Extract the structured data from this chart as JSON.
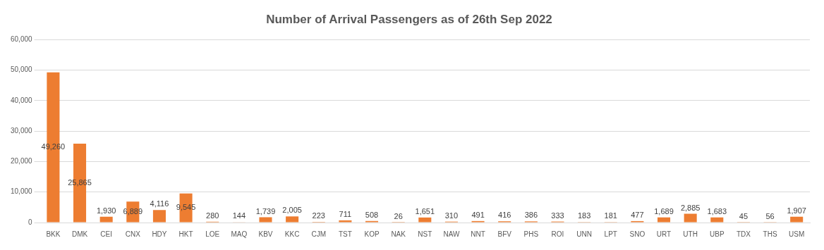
{
  "chart_data": {
    "type": "bar",
    "title": "Number of Arrival Passengers as of 26th Sep 2022",
    "categories": [
      "BKK",
      "DMK",
      "CEI",
      "CNX",
      "HDY",
      "HKT",
      "LOE",
      "MAQ",
      "KBV",
      "KKC",
      "CJM",
      "TST",
      "KOP",
      "NAK",
      "NST",
      "NAW",
      "NNT",
      "BFV",
      "PHS",
      "ROI",
      "UNN",
      "LPT",
      "SNO",
      "URT",
      "UTH",
      "UBP",
      "TDX",
      "THS",
      "USM"
    ],
    "values": [
      49260,
      25865,
      1930,
      6889,
      4116,
      9545,
      280,
      144,
      1739,
      2005,
      223,
      711,
      508,
      26,
      1651,
      310,
      491,
      416,
      386,
      333,
      183,
      181,
      477,
      1689,
      2885,
      1683,
      45,
      56,
      1907
    ],
    "value_labels": [
      "49,260",
      "25,865",
      "1,930",
      "6,889",
      "4,116",
      "9,545",
      "280",
      "144",
      "1,739",
      "2,005",
      "223",
      "711",
      "508",
      "26",
      "1,651",
      "310",
      "491",
      "416",
      "386",
      "333",
      "183",
      "181",
      "477",
      "1,689",
      "2,885",
      "1,683",
      "45",
      "56",
      "1,907"
    ],
    "color": "#ed7d31",
    "ylim": [
      0,
      60000
    ],
    "yticks": [
      0,
      {
        "value": 10000,
        "label": "10,000"
      },
      {
        "value": 20000,
        "label": "20,000"
      },
      {
        "value": 30000,
        "label": "30,000"
      },
      {
        "value": 40000,
        "label": "40,000"
      },
      {
        "value": 50000,
        "label": "50,000"
      },
      {
        "value": 60000,
        "label": "60,000"
      }
    ],
    "grid": "y"
  }
}
